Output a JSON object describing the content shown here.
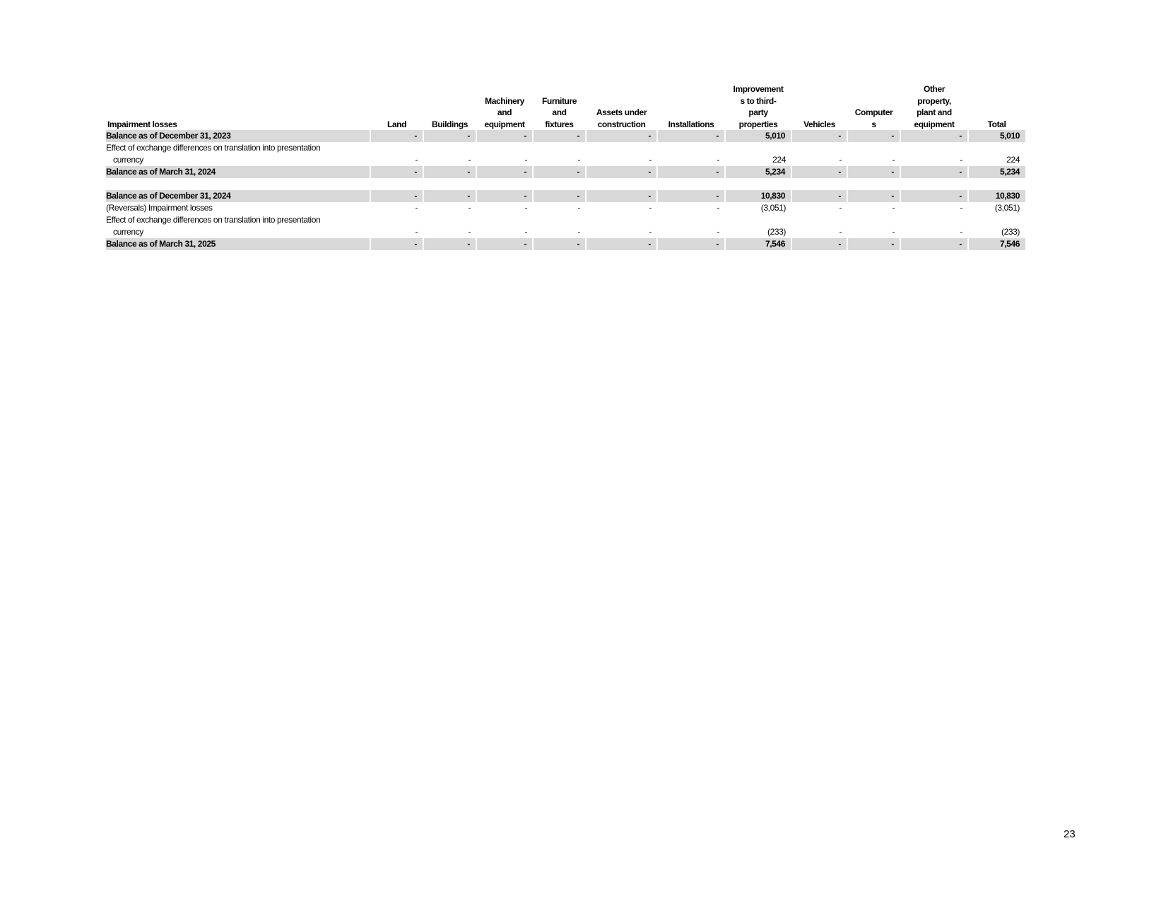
{
  "table": {
    "label": "Impairment losses",
    "columns": [
      [
        "Land"
      ],
      [
        "Buildings"
      ],
      [
        "Machinery",
        "and",
        "equipment"
      ],
      [
        "Furniture",
        "and",
        "fixtures"
      ],
      [
        "Assets under",
        "construction"
      ],
      [
        "Installations"
      ],
      [
        "Improvement",
        "s to third-",
        "party",
        "properties"
      ],
      [
        "Vehicles"
      ],
      [
        "Computer",
        "s"
      ],
      [
        "Other",
        "property,",
        "plant and",
        "equipment"
      ],
      [
        "Total"
      ]
    ],
    "sections": [
      {
        "rows": [
          {
            "bold": true,
            "label": [
              "Balance as of December 31, 2023"
            ],
            "values": [
              "-",
              "-",
              "-",
              "-",
              "-",
              "-",
              "5,010",
              "-",
              "-",
              "-",
              "5,010"
            ]
          },
          {
            "bold": false,
            "label": [
              "Effect of exchange differences on translation into presentation",
              "currency"
            ],
            "values": [
              "-",
              "-",
              "-",
              "-",
              "-",
              "-",
              "224",
              "-",
              "-",
              "-",
              "224"
            ]
          },
          {
            "bold": true,
            "label": [
              "Balance as of March 31, 2024"
            ],
            "values": [
              "-",
              "-",
              "-",
              "-",
              "-",
              "-",
              "5,234",
              "-",
              "-",
              "-",
              "5,234"
            ]
          }
        ]
      },
      {
        "rows": [
          {
            "bold": true,
            "label": [
              "Balance as of December 31, 2024"
            ],
            "values": [
              "-",
              "-",
              "-",
              "-",
              "-",
              "-",
              "10,830",
              "-",
              "-",
              "-",
              "10,830"
            ]
          },
          {
            "bold": false,
            "label": [
              "(Reversals) Impairment losses"
            ],
            "values": [
              "-",
              "-",
              "-",
              "-",
              "-",
              "-",
              "(3,051)",
              "-",
              "-",
              "-",
              "(3,051)"
            ]
          },
          {
            "bold": false,
            "label": [
              "Effect of exchange differences on translation into presentation",
              "currency"
            ],
            "values": [
              "-",
              "-",
              "-",
              "-",
              "-",
              "-",
              "(233)",
              "-",
              "-",
              "-",
              "(233)"
            ]
          },
          {
            "bold": true,
            "label": [
              "Balance as of March 31, 2025"
            ],
            "values": [
              "-",
              "-",
              "-",
              "-",
              "-",
              "-",
              "7,546",
              "-",
              "-",
              "-",
              "7,546"
            ]
          }
        ]
      }
    ]
  },
  "footer": {
    "page_number": "23"
  }
}
